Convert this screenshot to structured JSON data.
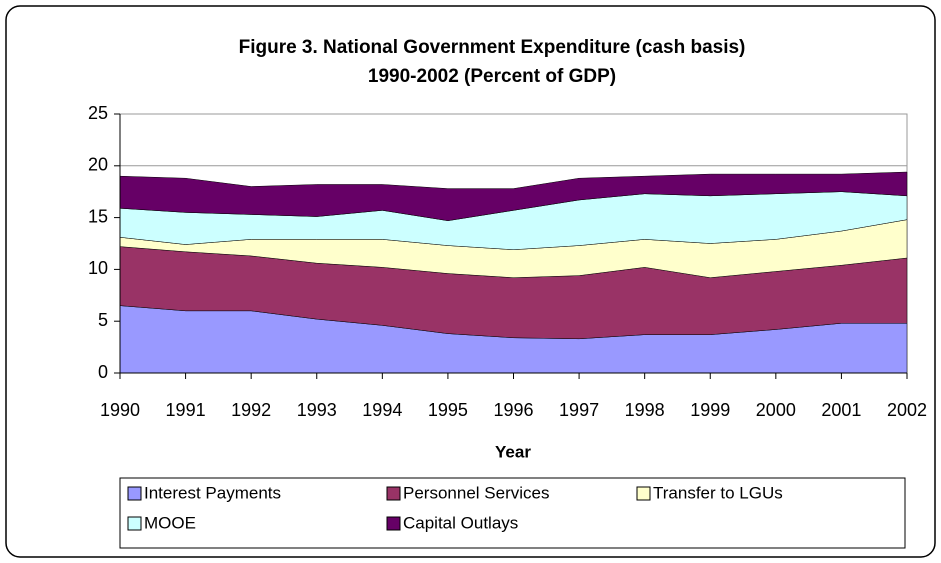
{
  "chart_data": {
    "type": "stacked_area",
    "title": "Figure 3.  National Government Expenditure (cash basis)",
    "subtitle": "1990-2002 (Percent of GDP)",
    "x_label": "Year",
    "categories": [
      "1990",
      "1991",
      "1992",
      "1993",
      "1994",
      "1995",
      "1996",
      "1997",
      "1998",
      "1999",
      "2000",
      "2001",
      "2002"
    ],
    "series": [
      {
        "name": "Interest Payments",
        "color": "#9999ff",
        "values": [
          6.5,
          6.0,
          6.0,
          5.2,
          4.6,
          3.8,
          3.4,
          3.3,
          3.7,
          3.7,
          4.2,
          4.8,
          4.8
        ]
      },
      {
        "name": "Personnel Services",
        "color": "#993366",
        "values": [
          5.7,
          5.7,
          5.3,
          5.4,
          5.6,
          5.8,
          5.8,
          6.1,
          6.5,
          5.5,
          5.6,
          5.6,
          6.3
        ]
      },
      {
        "name": "Transfer to LGUs",
        "color": "#ffffcc",
        "values": [
          0.9,
          0.7,
          1.6,
          2.3,
          2.7,
          2.7,
          2.7,
          2.9,
          2.7,
          3.3,
          3.1,
          3.3,
          3.7
        ]
      },
      {
        "name": "MOOE",
        "color": "#ccffff",
        "values": [
          2.8,
          3.1,
          2.4,
          2.2,
          2.8,
          2.4,
          3.8,
          4.4,
          4.4,
          4.6,
          4.4,
          3.8,
          2.3
        ]
      },
      {
        "name": "Capital Outlays",
        "color": "#660066",
        "values": [
          3.1,
          3.3,
          2.7,
          3.1,
          2.5,
          3.1,
          2.1,
          2.1,
          1.7,
          2.1,
          1.9,
          1.7,
          2.3
        ]
      }
    ],
    "ylim": [
      0,
      25
    ],
    "yticks": [
      0,
      5,
      10,
      15,
      20,
      25
    ],
    "grid": true,
    "legend": "bottom"
  }
}
